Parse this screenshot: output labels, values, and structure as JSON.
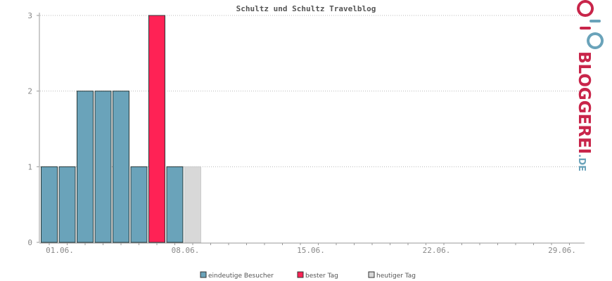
{
  "chart_data": {
    "type": "bar",
    "title": "Schultz und Schultz Travelblog",
    "xlabel": "",
    "ylabel": "",
    "ylim": [
      0,
      3
    ],
    "yticks": [
      0,
      1,
      2,
      3
    ],
    "x_range": [
      1,
      30
    ],
    "xtick_labels": [
      {
        "day": 1,
        "label": "01.06."
      },
      {
        "day": 8,
        "label": "08.06."
      },
      {
        "day": 15,
        "label": "15.06."
      },
      {
        "day": 22,
        "label": "22.06."
      },
      {
        "day": 29,
        "label": "29.06."
      }
    ],
    "grid": true,
    "legend_position": "bottom-center",
    "series": [
      {
        "day": 1,
        "value": 1,
        "kind": "unique"
      },
      {
        "day": 2,
        "value": 1,
        "kind": "unique"
      },
      {
        "day": 3,
        "value": 2,
        "kind": "unique"
      },
      {
        "day": 4,
        "value": 2,
        "kind": "unique"
      },
      {
        "day": 5,
        "value": 2,
        "kind": "unique"
      },
      {
        "day": 6,
        "value": 1,
        "kind": "unique"
      },
      {
        "day": 7,
        "value": 3,
        "kind": "best"
      },
      {
        "day": 8,
        "value": 1,
        "kind": "unique"
      },
      {
        "day": 9,
        "value": 1,
        "kind": "today"
      }
    ],
    "legend": [
      {
        "kind": "unique",
        "label": "eindeutige Besucher",
        "color": "#6aa3ba"
      },
      {
        "kind": "best",
        "label": "bester Tag",
        "color": "#ff2255"
      },
      {
        "kind": "today",
        "label": "heutiger Tag",
        "color": "#d8d8d8"
      }
    ]
  },
  "watermark": {
    "text_main": "BLOGGEREI",
    "text_suffix": ".DE",
    "color_main": "#c8254a",
    "color_suffix": "#6aa3ba"
  }
}
